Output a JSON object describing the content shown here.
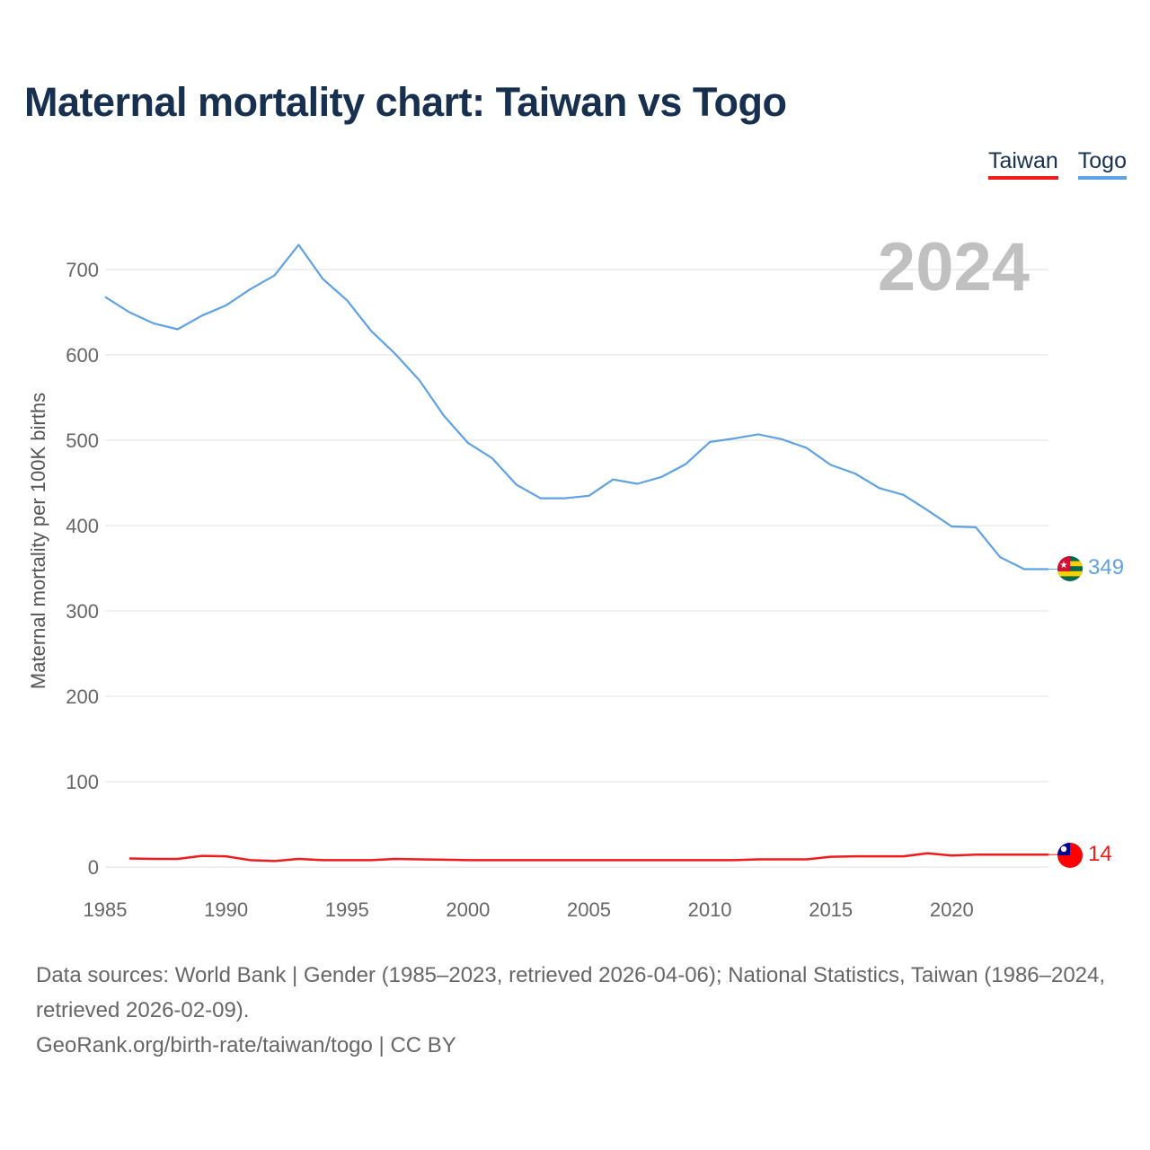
{
  "title": "Maternal mortality chart: Taiwan vs Togo",
  "legend": {
    "taiwan_label": "Taiwan",
    "togo_label": "Togo"
  },
  "colors": {
    "taiwan": "#f01b1b",
    "togo": "#5fa2e3",
    "title": "#17304f"
  },
  "chart_data": {
    "type": "line",
    "title": "Maternal mortality chart: Taiwan vs Togo",
    "xlabel": "",
    "ylabel": "Maternal mortality per 100K births",
    "xlim": [
      1985,
      2024
    ],
    "ylim": [
      0,
      750
    ],
    "x_ticks": [
      1985,
      1990,
      1995,
      2000,
      2005,
      2010,
      2015,
      2020
    ],
    "y_ticks": [
      0,
      100,
      200,
      300,
      400,
      500,
      600,
      700
    ],
    "grid": true,
    "legend_position": "top-right",
    "current_year_label": "2024",
    "series": [
      {
        "name": "Togo",
        "color": "#5fa2e3",
        "end_label": "349",
        "flag_icon": "togo-flag-icon",
        "x": [
          1985,
          1986,
          1987,
          1988,
          1989,
          1990,
          1991,
          1992,
          1993,
          1994,
          1995,
          1996,
          1997,
          1998,
          1999,
          2000,
          2001,
          2002,
          2003,
          2004,
          2005,
          2006,
          2007,
          2008,
          2009,
          2010,
          2011,
          2012,
          2013,
          2014,
          2015,
          2016,
          2017,
          2018,
          2019,
          2020,
          2021,
          2022,
          2023,
          2024
        ],
        "values": [
          668,
          650,
          637,
          630,
          646,
          658,
          677,
          693,
          729,
          689,
          664,
          628,
          601,
          570,
          529,
          497,
          479,
          448,
          432,
          432,
          435,
          454,
          449,
          457,
          472,
          498,
          502,
          507,
          501,
          491,
          471,
          461,
          444,
          436,
          418,
          399,
          398,
          363,
          349,
          349
        ]
      },
      {
        "name": "Taiwan",
        "color": "#f01b1b",
        "end_label": "14",
        "flag_icon": "taiwan-flag-icon",
        "x": [
          1986,
          1987,
          1988,
          1989,
          1990,
          1991,
          1992,
          1993,
          1994,
          1995,
          1996,
          1997,
          1998,
          1999,
          2000,
          2001,
          2002,
          2003,
          2004,
          2005,
          2006,
          2007,
          2008,
          2009,
          2010,
          2011,
          2012,
          2013,
          2014,
          2015,
          2016,
          2017,
          2018,
          2019,
          2020,
          2021,
          2022,
          2023,
          2024
        ],
        "values": [
          10,
          9.5,
          9.5,
          13,
          12.5,
          8,
          7,
          9.5,
          8,
          8,
          8,
          9.5,
          9,
          8.5,
          8,
          8,
          8,
          8,
          8,
          8,
          8,
          8,
          8,
          8,
          8,
          8,
          9,
          9,
          9,
          12,
          12.5,
          12.5,
          12.5,
          16,
          13.5,
          14.5,
          14.5,
          14.5,
          14.5
        ]
      }
    ]
  },
  "footer": {
    "line1": "Data sources: World Bank | Gender (1985–2023, retrieved 2026-04-06); National Statistics, Taiwan (1986–2024, retrieved 2026-02-09).",
    "line2": "GeoRank.org/birth-rate/taiwan/togo | CC BY"
  }
}
